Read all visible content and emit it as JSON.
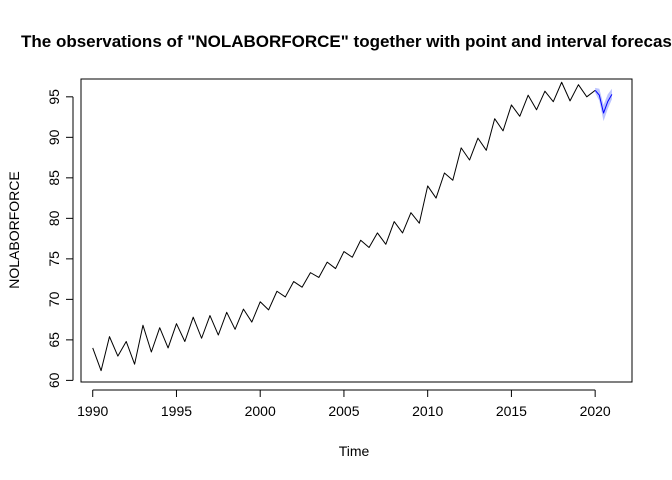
{
  "chart_data": {
    "type": "line",
    "title": "The observations of \"NOLABORFORCE\" together with point and interval forecasts",
    "xlabel": "Time",
    "ylabel": "NOLABORFORCE",
    "xlim": [
      1989.3,
      2022.2
    ],
    "ylim": [
      59.8,
      97.2
    ],
    "x_ticks": [
      1990,
      1995,
      2000,
      2005,
      2010,
      2015,
      2020
    ],
    "x_tick_labels": [
      "1990",
      "1995",
      "2000",
      "2005",
      "2010",
      "2015",
      "2020"
    ],
    "y_ticks": [
      60,
      65,
      70,
      75,
      80,
      85,
      90,
      95
    ],
    "y_tick_labels": [
      "60",
      "65",
      "70",
      "75",
      "80",
      "85",
      "90",
      "95"
    ],
    "grid": false,
    "legend": "none",
    "series": [
      {
        "name": "",
        "role": "observed",
        "color": "#000000",
        "x": [
          1990.0,
          1990.5,
          1991.0,
          1991.5,
          1992.0,
          1992.5,
          1993.0,
          1993.5,
          1994.0,
          1994.5,
          1995.0,
          1995.5,
          1996.0,
          1996.5,
          1997.0,
          1997.5,
          1998.0,
          1998.5,
          1999.0,
          1999.5,
          2000.0,
          2000.5,
          2001.0,
          2001.5,
          2002.0,
          2002.5,
          2003.0,
          2003.5,
          2004.0,
          2004.5,
          2005.0,
          2005.5,
          2006.0,
          2006.5,
          2007.0,
          2007.5,
          2008.0,
          2008.5,
          2009.0,
          2009.5,
          2010.0,
          2010.5,
          2011.0,
          2011.5,
          2012.0,
          2012.5,
          2013.0,
          2013.5,
          2014.0,
          2014.5,
          2015.0,
          2015.5,
          2016.0,
          2016.5,
          2017.0,
          2017.5,
          2018.0,
          2018.5,
          2019.0,
          2019.5,
          2020.0
        ],
        "values": [
          64.0,
          61.2,
          65.4,
          63.0,
          64.8,
          62.0,
          66.8,
          63.5,
          66.5,
          64.0,
          67.0,
          64.8,
          67.8,
          65.2,
          68.0,
          65.6,
          68.4,
          66.3,
          68.8,
          67.2,
          69.7,
          68.7,
          71.0,
          70.3,
          72.2,
          71.5,
          73.3,
          72.7,
          74.6,
          73.8,
          75.9,
          75.2,
          77.3,
          76.4,
          78.2,
          76.8,
          79.6,
          78.2,
          80.7,
          79.4,
          84.0,
          82.5,
          85.6,
          84.7,
          88.7,
          87.2,
          89.9,
          88.4,
          92.3,
          90.8,
          94.0,
          92.6,
          95.2,
          93.4,
          95.7,
          94.4,
          96.8,
          94.5,
          96.5,
          95.0,
          95.8
        ]
      },
      {
        "name": "",
        "role": "point forecast",
        "color": "#0000ff",
        "x": [
          2020.0,
          2020.25,
          2020.5,
          2020.75,
          2021.0
        ],
        "values": [
          95.8,
          95.2,
          93.0,
          94.4,
          95.3
        ]
      }
    ],
    "interval": {
      "color": "#aab4ff",
      "x": [
        2020.0,
        2020.25,
        2020.5,
        2020.75,
        2021.0
      ],
      "lower": [
        95.5,
        94.5,
        92.0,
        93.5,
        94.7
      ],
      "upper": [
        96.1,
        96.0,
        94.0,
        95.3,
        96.0
      ]
    }
  }
}
